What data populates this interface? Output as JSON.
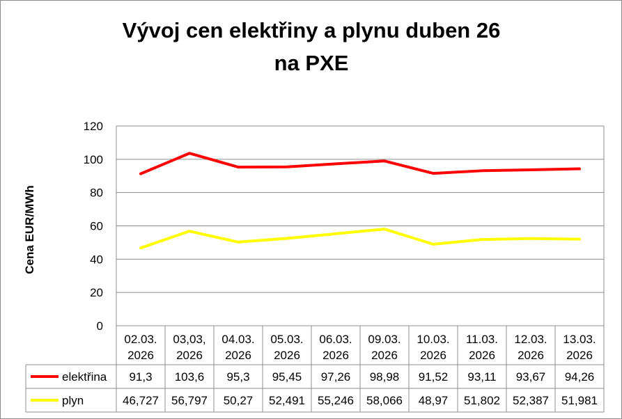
{
  "chart_data": {
    "type": "line",
    "title_line1": "Vývoj cen elektřiny a plynu duben 26",
    "title_line2": "na PXE",
    "ylabel": "Cena EUR/MWh",
    "ylim": [
      0,
      120
    ],
    "yticks": [
      "0",
      "20",
      "40",
      "60",
      "80",
      "100",
      "120"
    ],
    "grid": true,
    "legend": "data-table",
    "categories": [
      {
        "line1": "02.03.",
        "line2": "2026"
      },
      {
        "line1": "03,03,",
        "line2": "2026"
      },
      {
        "line1": "04.03.",
        "line2": "2026"
      },
      {
        "line1": "05.03.",
        "line2": "2026"
      },
      {
        "line1": "06.03.",
        "line2": "2026"
      },
      {
        "line1": "09.03.",
        "line2": "2026"
      },
      {
        "line1": "10.03.",
        "line2": "2026"
      },
      {
        "line1": "11.03.",
        "line2": "2026"
      },
      {
        "line1": "12.03.",
        "line2": "2026"
      },
      {
        "line1": "13.03.",
        "line2": "2026"
      }
    ],
    "series": [
      {
        "name": "elektřina",
        "color": "#ff0000",
        "values": [
          91.3,
          103.6,
          95.3,
          95.45,
          97.26,
          98.98,
          91.52,
          93.11,
          93.67,
          94.26
        ],
        "labels": [
          "91,3",
          "103,6",
          "95,3",
          "95,45",
          "97,26",
          "98,98",
          "91,52",
          "93,11",
          "93,67",
          "94,26"
        ]
      },
      {
        "name": "plyn",
        "color": "#ffff00",
        "values": [
          46.727,
          56.797,
          50.27,
          52.491,
          55.246,
          58.066,
          48.97,
          51.802,
          52.387,
          51.981
        ],
        "labels": [
          "46,727",
          "56,797",
          "50,27",
          "52,491",
          "55,246",
          "58,066",
          "48,97",
          "51,802",
          "52,387",
          "51,981"
        ]
      }
    ]
  }
}
